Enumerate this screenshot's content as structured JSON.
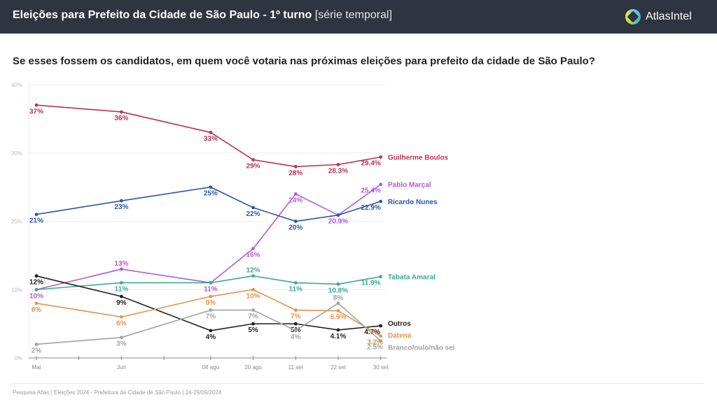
{
  "header": {
    "title_main": "Eleições para Prefeito da Cidade de São Paulo - 1º turno",
    "title_sub": "[série temporal]",
    "logo_icon": "atlasintel-logo-icon",
    "logo_text": "AtlasIntel"
  },
  "question": "Se esses fossem os candidatos, em quem você votaria nas próximas eleições para prefeito da cidade de São Paulo?",
  "footer": "Pesquisa Atlas  |  Eleições 2024 - Prefeitura da Cidade de São Paulo  |  24-29/09/2024",
  "chart_data": {
    "type": "line",
    "title": "Se esses fossem os candidatos, em quem você votaria nas próximas eleições para prefeito da cidade de São Paulo?",
    "xlabel": "",
    "ylabel": "",
    "x": [
      "Mai",
      "Jun",
      "08 ago",
      "20 ago",
      "11 set",
      "22 set",
      "30 set"
    ],
    "x_time_index": [
      0,
      2,
      4.1,
      5.1,
      6.1,
      7.1,
      8.1
    ],
    "minor_ticks_unlabeled": [
      1,
      3
    ],
    "yticks": [
      "0%",
      "10%",
      "20%",
      "30%",
      "40%"
    ],
    "ylim": [
      0,
      40
    ],
    "grid": true,
    "legend": "right (end-of-line labels)",
    "series": [
      {
        "name": "Guilherme Boulos",
        "color": "#c0304f",
        "values": [
          37,
          36,
          33,
          29,
          28,
          28.3,
          29.4
        ],
        "labels": [
          "37%",
          "36%",
          "33%",
          "29%",
          "28%",
          "28.3%",
          "29.4%"
        ]
      },
      {
        "name": "Pablo Marçal",
        "color": "#b35ad6",
        "values": [
          10,
          13,
          11,
          16,
          24,
          20.9,
          25.4
        ],
        "labels": [
          "10%",
          "13%",
          "11%",
          "16%",
          "24%",
          "20.9%",
          "25.4%"
        ]
      },
      {
        "name": "Ricardo Nunes",
        "color": "#2a58a8",
        "values": [
          21,
          23,
          25,
          22,
          20,
          20.9,
          22.9
        ],
        "labels": [
          "21%",
          "23%",
          "25%",
          "22%",
          "20%",
          "",
          "22.9%"
        ]
      },
      {
        "name": "Tabata Amaral",
        "color": "#3aab8f",
        "values": [
          10,
          11,
          11,
          12,
          11,
          10.8,
          11.9
        ],
        "labels": [
          "",
          "11%",
          "",
          "12%",
          "11%",
          "10.8%",
          "11.9%"
        ]
      },
      {
        "name": "Outros",
        "color": "#1e1e1e",
        "values": [
          12,
          9,
          4,
          5,
          5,
          4.1,
          4.7
        ],
        "labels": [
          "12%",
          "9%",
          "4%",
          "5%",
          "5%",
          "4.1%",
          "4.7%"
        ]
      },
      {
        "name": "Datena",
        "color": "#e8924a",
        "values": [
          8,
          6,
          9,
          10,
          7,
          6.9,
          3.2
        ],
        "labels": [
          "8%",
          "6%",
          "9%",
          "10%",
          "7%",
          "6.9%",
          "3.2%"
        ]
      },
      {
        "name": "Branco/nulo/não sei",
        "color": "#a3a3a3",
        "values": [
          2,
          3,
          7,
          7,
          4,
          8,
          2.5
        ],
        "labels": [
          "2%",
          "3%",
          "7%",
          "7%",
          "4%",
          "8%",
          "2.5%"
        ]
      }
    ]
  }
}
